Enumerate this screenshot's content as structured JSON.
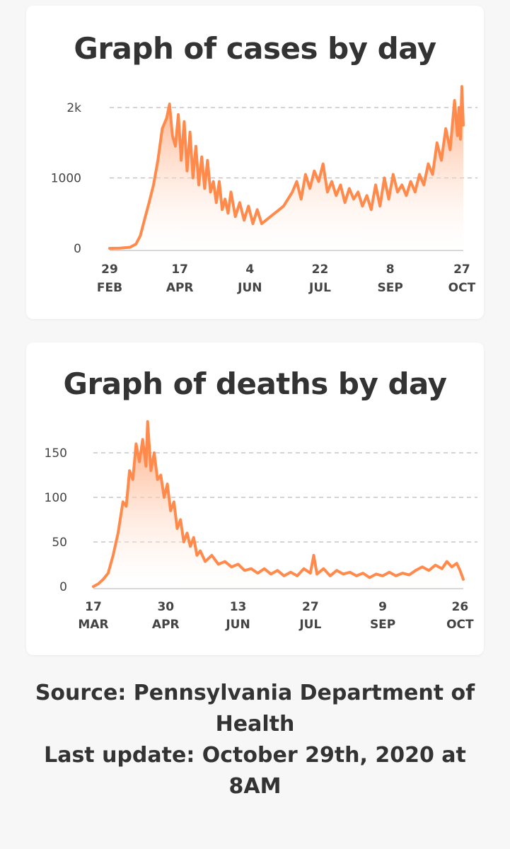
{
  "source_text": "Source: Pennsylvania Department of Health",
  "update_text": "Last update: October 29th, 2020 at 8AM",
  "colors": {
    "line": "#ff8a4c",
    "fill_top": "#ff9a66",
    "grid": "#bbbbbb",
    "axis": "#cccccc"
  },
  "chart_data": [
    {
      "type": "area",
      "title": "Graph of cases by day",
      "y_ticks": [
        "2k",
        "1000",
        "0"
      ],
      "y_tick_values": [
        2000,
        1000,
        0
      ],
      "ylim": [
        0,
        2000
      ],
      "x_ticks": [
        {
          "day": "29",
          "month": "FEB",
          "date": "2020-02-29"
        },
        {
          "day": "17",
          "month": "APR",
          "date": "2020-04-17"
        },
        {
          "day": "4",
          "month": "JUN",
          "date": "2020-06-04"
        },
        {
          "day": "22",
          "month": "JUL",
          "date": "2020-07-22"
        },
        {
          "day": "8",
          "month": "SEP",
          "date": "2020-09-08"
        },
        {
          "day": "27",
          "month": "OCT",
          "date": "2020-10-27"
        }
      ],
      "grid": true,
      "series": [
        {
          "points": [
            [
              "2020-02-29",
              0
            ],
            [
              "2020-03-07",
              2
            ],
            [
              "2020-03-14",
              15
            ],
            [
              "2020-03-18",
              60
            ],
            [
              "2020-03-21",
              180
            ],
            [
              "2020-03-24",
              420
            ],
            [
              "2020-03-27",
              650
            ],
            [
              "2020-03-30",
              900
            ],
            [
              "2020-04-02",
              1250
            ],
            [
              "2020-04-05",
              1700
            ],
            [
              "2020-04-08",
              1850
            ],
            [
              "2020-04-10",
              2050
            ],
            [
              "2020-04-12",
              1600
            ],
            [
              "2020-04-14",
              1450
            ],
            [
              "2020-04-16",
              1900
            ],
            [
              "2020-04-18",
              1250
            ],
            [
              "2020-04-20",
              1800
            ],
            [
              "2020-04-22",
              1100
            ],
            [
              "2020-04-24",
              1650
            ],
            [
              "2020-04-26",
              1000
            ],
            [
              "2020-04-28",
              1450
            ],
            [
              "2020-04-30",
              900
            ],
            [
              "2020-05-02",
              1300
            ],
            [
              "2020-05-04",
              850
            ],
            [
              "2020-05-06",
              1250
            ],
            [
              "2020-05-08",
              800
            ],
            [
              "2020-05-10",
              950
            ],
            [
              "2020-05-12",
              650
            ],
            [
              "2020-05-14",
              950
            ],
            [
              "2020-05-16",
              550
            ],
            [
              "2020-05-18",
              700
            ],
            [
              "2020-05-20",
              500
            ],
            [
              "2020-05-22",
              800
            ],
            [
              "2020-05-25",
              450
            ],
            [
              "2020-05-28",
              650
            ],
            [
              "2020-05-31",
              400
            ],
            [
              "2020-06-03",
              600
            ],
            [
              "2020-06-06",
              350
            ],
            [
              "2020-06-09",
              550
            ],
            [
              "2020-06-12",
              350
            ],
            [
              "2020-06-15",
              400
            ],
            [
              "2020-06-18",
              450
            ],
            [
              "2020-06-21",
              500
            ],
            [
              "2020-06-24",
              550
            ],
            [
              "2020-06-27",
              600
            ],
            [
              "2020-06-30",
              700
            ],
            [
              "2020-07-03",
              800
            ],
            [
              "2020-07-06",
              950
            ],
            [
              "2020-07-09",
              700
            ],
            [
              "2020-07-12",
              1050
            ],
            [
              "2020-07-15",
              850
            ],
            [
              "2020-07-18",
              1100
            ],
            [
              "2020-07-21",
              950
            ],
            [
              "2020-07-24",
              1200
            ],
            [
              "2020-07-27",
              800
            ],
            [
              "2020-07-30",
              950
            ],
            [
              "2020-08-02",
              750
            ],
            [
              "2020-08-05",
              900
            ],
            [
              "2020-08-08",
              650
            ],
            [
              "2020-08-11",
              850
            ],
            [
              "2020-08-14",
              700
            ],
            [
              "2020-08-17",
              800
            ],
            [
              "2020-08-20",
              600
            ],
            [
              "2020-08-23",
              750
            ],
            [
              "2020-08-26",
              550
            ],
            [
              "2020-08-29",
              900
            ],
            [
              "2020-09-01",
              600
            ],
            [
              "2020-09-04",
              1000
            ],
            [
              "2020-09-07",
              700
            ],
            [
              "2020-09-10",
              1050
            ],
            [
              "2020-09-13",
              800
            ],
            [
              "2020-09-16",
              900
            ],
            [
              "2020-09-19",
              750
            ],
            [
              "2020-09-22",
              950
            ],
            [
              "2020-09-25",
              800
            ],
            [
              "2020-09-28",
              1050
            ],
            [
              "2020-10-01",
              900
            ],
            [
              "2020-10-04",
              1200
            ],
            [
              "2020-10-07",
              1050
            ],
            [
              "2020-10-10",
              1500
            ],
            [
              "2020-10-13",
              1250
            ],
            [
              "2020-10-16",
              1700
            ],
            [
              "2020-10-19",
              1400
            ],
            [
              "2020-10-22",
              2100
            ],
            [
              "2020-10-24",
              1600
            ],
            [
              "2020-10-25",
              2000
            ],
            [
              "2020-10-26",
              1550
            ],
            [
              "2020-10-27",
              2300
            ],
            [
              "2020-10-28",
              1750
            ]
          ]
        }
      ]
    },
    {
      "type": "area",
      "title": "Graph of deaths by day",
      "y_ticks": [
        "150",
        "100",
        "50",
        "0"
      ],
      "y_tick_values": [
        150,
        100,
        50,
        0
      ],
      "ylim": [
        0,
        150
      ],
      "x_ticks": [
        {
          "day": "17",
          "month": "MAR",
          "date": "2020-03-17"
        },
        {
          "day": "30",
          "month": "APR",
          "date": "2020-04-30"
        },
        {
          "day": "13",
          "month": "JUN",
          "date": "2020-06-13"
        },
        {
          "day": "27",
          "month": "JUL",
          "date": "2020-07-27"
        },
        {
          "day": "9",
          "month": "SEP",
          "date": "2020-09-09"
        },
        {
          "day": "26",
          "month": "OCT",
          "date": "2020-10-26"
        }
      ],
      "grid": true,
      "series": [
        {
          "points": [
            [
              "2020-03-17",
              0
            ],
            [
              "2020-03-20",
              3
            ],
            [
              "2020-03-23",
              8
            ],
            [
              "2020-03-26",
              15
            ],
            [
              "2020-03-29",
              35
            ],
            [
              "2020-04-01",
              60
            ],
            [
              "2020-04-04",
              95
            ],
            [
              "2020-04-06",
              90
            ],
            [
              "2020-04-08",
              130
            ],
            [
              "2020-04-10",
              120
            ],
            [
              "2020-04-12",
              160
            ],
            [
              "2020-04-14",
              140
            ],
            [
              "2020-04-16",
              165
            ],
            [
              "2020-04-18",
              135
            ],
            [
              "2020-04-19",
              185
            ],
            [
              "2020-04-21",
              130
            ],
            [
              "2020-04-23",
              150
            ],
            [
              "2020-04-25",
              120
            ],
            [
              "2020-04-27",
              125
            ],
            [
              "2020-04-29",
              100
            ],
            [
              "2020-05-01",
              115
            ],
            [
              "2020-05-03",
              85
            ],
            [
              "2020-05-05",
              95
            ],
            [
              "2020-05-07",
              65
            ],
            [
              "2020-05-09",
              75
            ],
            [
              "2020-05-11",
              50
            ],
            [
              "2020-05-13",
              60
            ],
            [
              "2020-05-15",
              45
            ],
            [
              "2020-05-17",
              55
            ],
            [
              "2020-05-19",
              35
            ],
            [
              "2020-05-21",
              40
            ],
            [
              "2020-05-24",
              28
            ],
            [
              "2020-05-28",
              35
            ],
            [
              "2020-06-01",
              25
            ],
            [
              "2020-06-05",
              28
            ],
            [
              "2020-06-09",
              22
            ],
            [
              "2020-06-13",
              25
            ],
            [
              "2020-06-17",
              18
            ],
            [
              "2020-06-21",
              20
            ],
            [
              "2020-06-25",
              15
            ],
            [
              "2020-06-29",
              20
            ],
            [
              "2020-07-03",
              14
            ],
            [
              "2020-07-07",
              18
            ],
            [
              "2020-07-11",
              12
            ],
            [
              "2020-07-15",
              16
            ],
            [
              "2020-07-19",
              12
            ],
            [
              "2020-07-23",
              20
            ],
            [
              "2020-07-27",
              15
            ],
            [
              "2020-07-29",
              35
            ],
            [
              "2020-07-31",
              14
            ],
            [
              "2020-08-04",
              20
            ],
            [
              "2020-08-08",
              12
            ],
            [
              "2020-08-12",
              18
            ],
            [
              "2020-08-16",
              14
            ],
            [
              "2020-08-20",
              16
            ],
            [
              "2020-08-24",
              12
            ],
            [
              "2020-08-28",
              15
            ],
            [
              "2020-09-01",
              10
            ],
            [
              "2020-09-05",
              14
            ],
            [
              "2020-09-09",
              12
            ],
            [
              "2020-09-13",
              16
            ],
            [
              "2020-09-17",
              12
            ],
            [
              "2020-09-21",
              15
            ],
            [
              "2020-09-25",
              13
            ],
            [
              "2020-09-29",
              18
            ],
            [
              "2020-10-03",
              22
            ],
            [
              "2020-10-07",
              18
            ],
            [
              "2020-10-11",
              24
            ],
            [
              "2020-10-15",
              20
            ],
            [
              "2020-10-18",
              28
            ],
            [
              "2020-10-21",
              22
            ],
            [
              "2020-10-24",
              26
            ],
            [
              "2020-10-26",
              18
            ],
            [
              "2020-10-28",
              8
            ]
          ]
        }
      ]
    }
  ]
}
